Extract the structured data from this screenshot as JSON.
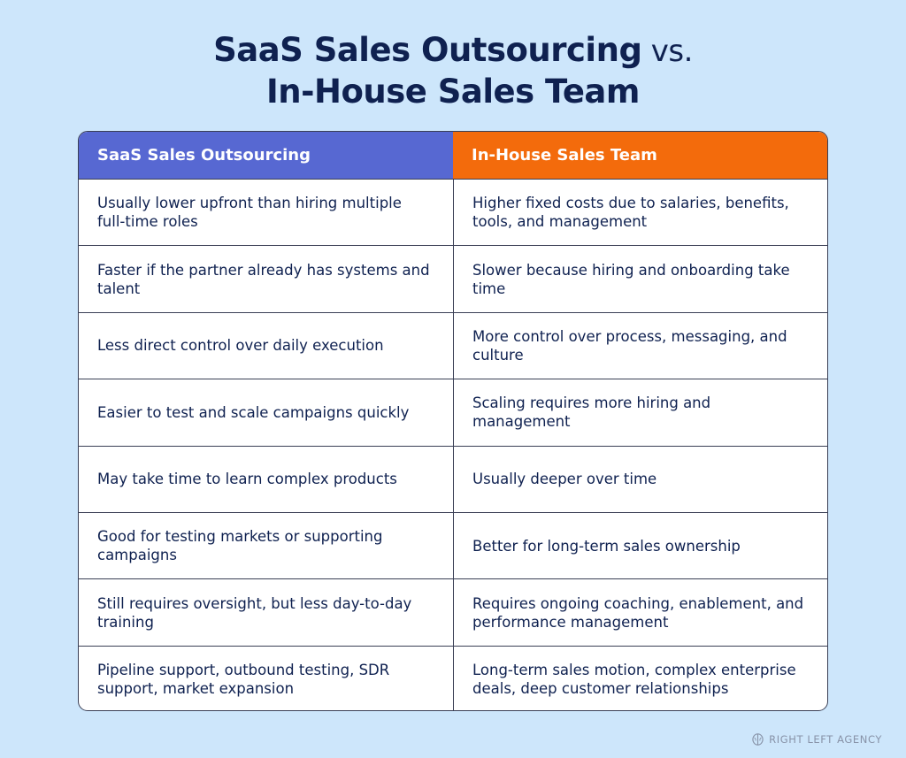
{
  "title": {
    "line1_main": "SaaS Sales Outsourcing",
    "line1_suffix": " vs.",
    "line2": "In-House Sales Team"
  },
  "table": {
    "headers": [
      "SaaS Sales Outsourcing",
      "In-House Sales Team"
    ],
    "rows": [
      [
        "Usually lower upfront than hiring multiple full-time roles",
        "Higher fixed costs due to salaries, benefits, tools, and management"
      ],
      [
        "Faster if the partner already has systems and talent",
        "Slower because hiring and onboarding take time"
      ],
      [
        "Less direct control over daily execution",
        "More control over process, messaging, and culture"
      ],
      [
        "Easier to test and scale campaigns quickly",
        "Scaling requires more hiring and management"
      ],
      [
        "May take time to learn complex products",
        "Usually deeper over time"
      ],
      [
        "Good for testing markets or supporting campaigns",
        "Better for long-term sales ownership"
      ],
      [
        "Still requires oversight, but less day-to-day training",
        "Requires ongoing coaching, enablement, and performance management"
      ],
      [
        "Pipeline support, outbound testing, SDR support, market expansion",
        "Long-term sales motion, complex enterprise deals, deep customer relationships"
      ]
    ]
  },
  "footer": {
    "brand": "RIGHT LEFT AGENCY",
    "logo_icon": "brain-logo-icon"
  },
  "colors": {
    "background": "#cde6fb",
    "title_text": "#0f2150",
    "header_left": "#5768d2",
    "header_right": "#f36b0c",
    "border": "#3a3f55"
  }
}
